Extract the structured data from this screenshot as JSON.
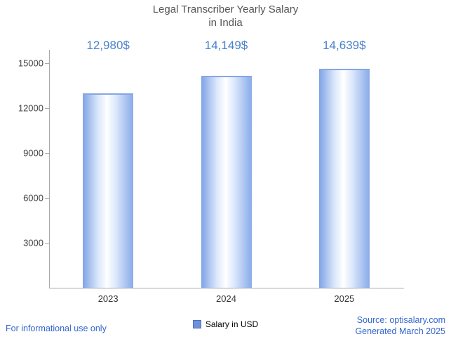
{
  "title": {
    "line1": "Legal Transcriber Yearly Salary",
    "line2": "in India"
  },
  "chart_data": {
    "type": "bar",
    "title": "Legal Transcriber Yearly Salary in India",
    "categories": [
      "2023",
      "2024",
      "2025"
    ],
    "values": [
      12980,
      14149,
      14639
    ],
    "value_labels": [
      "12,980$",
      "14,149$",
      "14,639$"
    ],
    "xlabel": "",
    "ylabel": "",
    "ylim": [
      0,
      15000
    ],
    "yticks": [
      3000,
      6000,
      9000,
      12000,
      15000
    ],
    "grid": false,
    "legend": {
      "label": "Salary in USD",
      "position": "bottom",
      "marker_color": "#6f91d8"
    }
  },
  "colors": {
    "bar_fill": "#9bb8ee",
    "value_label_blue": "#4a82cc",
    "footer_blue": "#3366cc",
    "title_gray": "#555555"
  },
  "footer": {
    "left": "For informational use only",
    "source": "Source: optisalary.com",
    "generated": "Generated March 2025"
  }
}
